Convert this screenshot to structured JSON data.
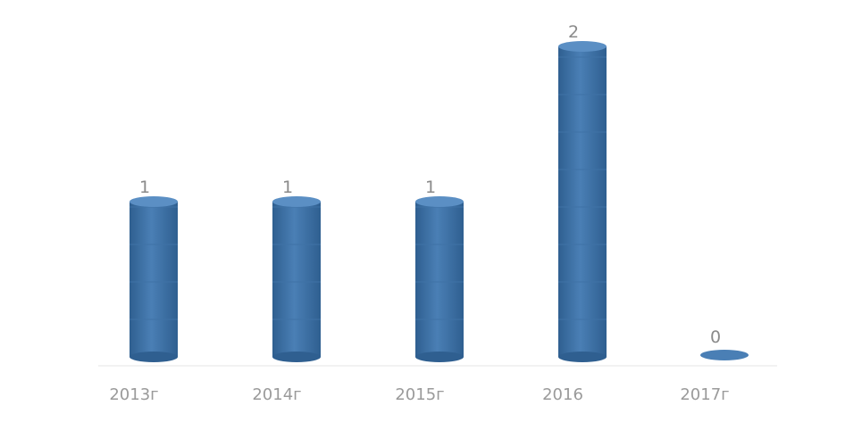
{
  "chart_data": {
    "type": "bar",
    "style": "3d-cylinder",
    "categories": [
      "2013г",
      "2014г",
      "2015г",
      "2016",
      "2017г"
    ],
    "values": [
      1,
      1,
      1,
      2,
      0
    ],
    "data_labels": [
      "1",
      "1",
      "1",
      "2",
      "0"
    ],
    "title": "",
    "xlabel": "",
    "ylabel": "",
    "ylim": [
      0,
      2
    ],
    "grid": false,
    "legend": "none",
    "colors": {
      "bar": "#4a7fb5",
      "bar_dark": "#2f5f90",
      "bar_top": "#5b8fc4",
      "label": "#8a8a8a"
    }
  }
}
